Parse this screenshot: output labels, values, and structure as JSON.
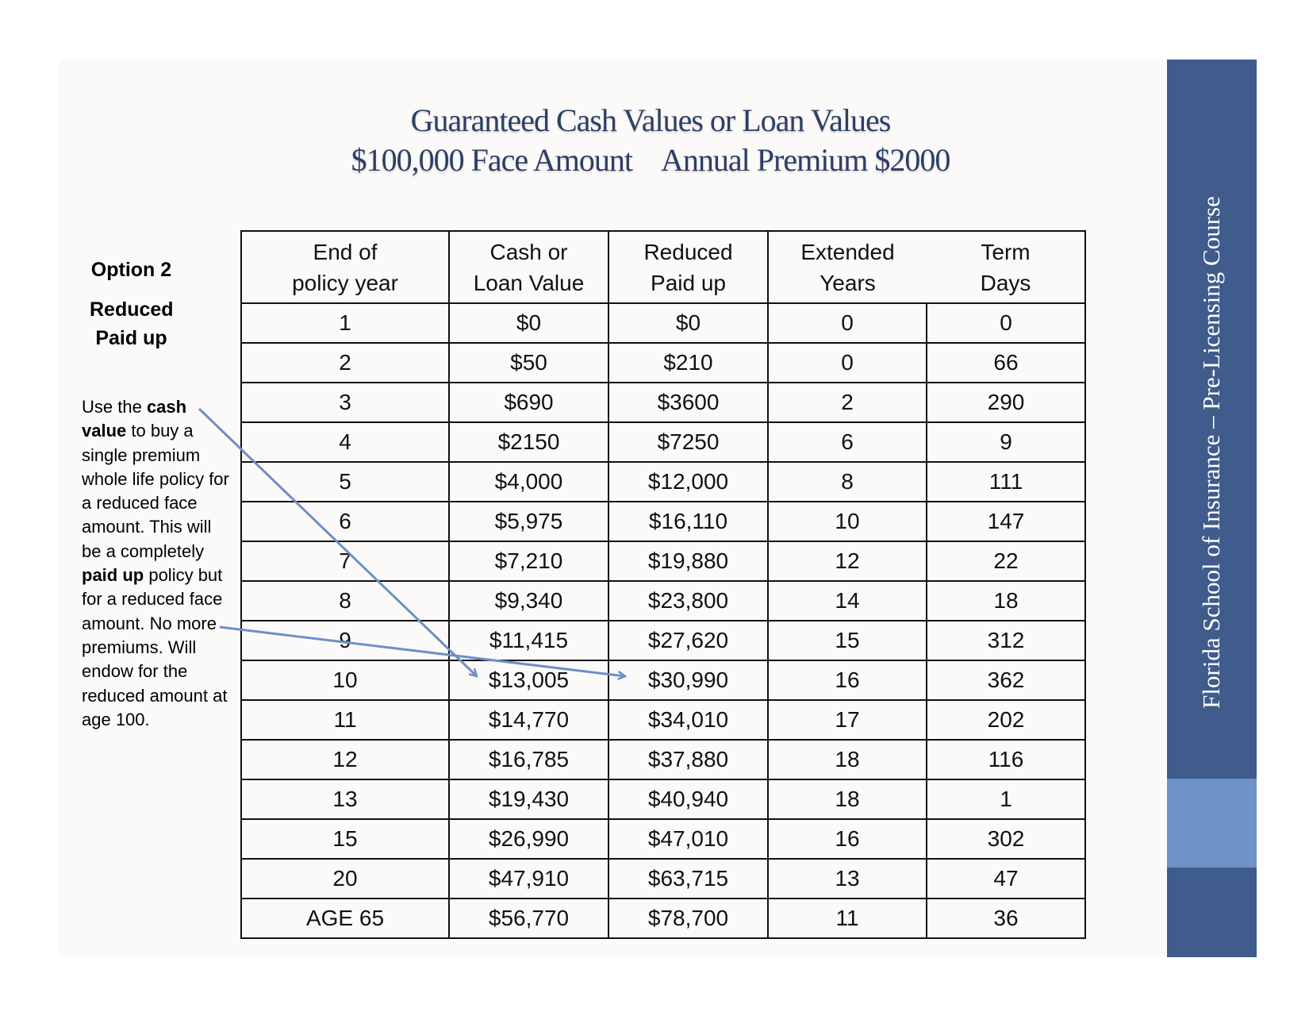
{
  "title": {
    "line1": "Guaranteed Cash Values or Loan Values",
    "face": "$100,000 Face Amount",
    "premium": "Annual Premium $2000"
  },
  "left": {
    "option": "Option 2",
    "heading_1": "Reduced",
    "heading_2": "Paid up",
    "description": [
      {
        "t": "Use the ",
        "b": false
      },
      {
        "t": "cash value",
        "b": true
      },
      {
        "t": " to buy a single premium whole life policy for a reduced face amount. This will be a completely ",
        "b": false
      },
      {
        "t": "paid up",
        "b": true
      },
      {
        "t": " policy but for a reduced face amount. No more premiums. Will endow for the reduced amount at age 100.",
        "b": false
      }
    ]
  },
  "sidebar": {
    "text": "Florida School of Insurance – Pre-Licensing Course",
    "color": "#3f5c8c",
    "accent": "#6f93c8"
  },
  "table": {
    "headers": [
      [
        "End of",
        "policy year"
      ],
      [
        "Cash or",
        "Loan Value"
      ],
      [
        "Reduced",
        "Paid up"
      ],
      [
        "Extended",
        "Years"
      ],
      [
        "Term",
        "Days"
      ]
    ],
    "rows": [
      [
        "1",
        "$0",
        "$0",
        "0",
        "0"
      ],
      [
        "2",
        "$50",
        "$210",
        "0",
        "66"
      ],
      [
        "3",
        "$690",
        "$3600",
        "2",
        "290"
      ],
      [
        "4",
        "$2150",
        "$7250",
        "6",
        "9"
      ],
      [
        "5",
        "$4,000",
        "$12,000",
        "8",
        "111"
      ],
      [
        "6",
        "$5,975",
        "$16,110",
        "10",
        "147"
      ],
      [
        "7",
        "$7,210",
        "$19,880",
        "12",
        "22"
      ],
      [
        "8",
        "$9,340",
        "$23,800",
        "14",
        "18"
      ],
      [
        "9",
        "$11,415",
        "$27,620",
        "15",
        "312"
      ],
      [
        "10",
        "$13,005",
        "$30,990",
        "16",
        "362"
      ],
      [
        "11",
        "$14,770",
        "$34,010",
        "17",
        "202"
      ],
      [
        "12",
        "$16,785",
        "$37,880",
        "18",
        "116"
      ],
      [
        "13",
        "$19,430",
        "$40,940",
        "18",
        "1"
      ],
      [
        "15",
        "$26,990",
        "$47,010",
        "16",
        "302"
      ],
      [
        "20",
        "$47,910",
        "$63,715",
        "13",
        "47"
      ],
      [
        "AGE 65",
        "$56,770",
        "$78,700",
        "11",
        "36"
      ]
    ]
  },
  "arrow_color": "#6e8fc6"
}
